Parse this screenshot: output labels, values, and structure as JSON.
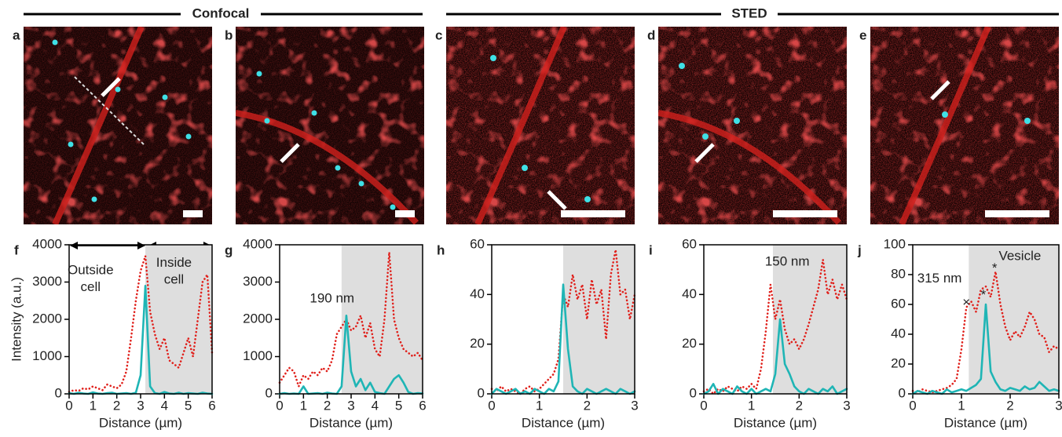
{
  "headers": [
    "Confocal",
    "STED"
  ],
  "panel_labels": [
    "a",
    "b",
    "c",
    "d",
    "e"
  ],
  "chart_data": [
    {
      "type": "line",
      "label": "f",
      "xlabel": "Distance (µm)",
      "ylabel": "Intensity (a.u.)",
      "x": [
        0,
        0.2,
        0.4,
        0.6,
        0.8,
        1,
        1.2,
        1.4,
        1.6,
        1.8,
        2,
        2.2,
        2.4,
        2.6,
        2.8,
        3,
        3.2,
        3.4,
        3.6,
        3.8,
        4,
        4.2,
        4.4,
        4.6,
        4.8,
        5,
        5.2,
        5.4,
        5.6,
        5.8,
        6
      ],
      "series": [
        {
          "color": "#e0201b",
          "dash": "dotted",
          "values": [
            50,
            100,
            80,
            150,
            120,
            200,
            150,
            100,
            250,
            200,
            150,
            250,
            600,
            1500,
            2500,
            3300,
            3700,
            2200,
            1600,
            1200,
            1500,
            900,
            800,
            700,
            1100,
            1500,
            1000,
            2000,
            3000,
            3200,
            1100
          ]
        },
        {
          "color": "#1fb5b5",
          "dash": "solid",
          "values": [
            20,
            0,
            30,
            10,
            0,
            40,
            10,
            0,
            20,
            30,
            0,
            10,
            20,
            0,
            30,
            500,
            2900,
            200,
            20,
            0,
            50,
            10,
            0,
            30,
            0,
            20,
            10,
            0,
            30,
            10,
            0
          ]
        }
      ],
      "xlim": [
        0,
        6
      ],
      "ylim": [
        0,
        4000
      ],
      "xticks": [
        0,
        1,
        2,
        3,
        4,
        5,
        6
      ],
      "yticks": [
        0,
        1000,
        2000,
        3000,
        4000
      ],
      "shade": [
        3.2,
        6
      ],
      "annotations": [
        {
          "text": "Outside",
          "x": 0.9,
          "y": 3300
        },
        {
          "text": "cell",
          "x": 0.9,
          "y": 2850
        },
        {
          "text": "Inside",
          "x": 4.4,
          "y": 3500
        },
        {
          "text": "cell",
          "x": 4.4,
          "y": 3050
        }
      ]
    },
    {
      "type": "line",
      "label": "g",
      "xlabel": "Distance (µm)",
      "x": [
        0,
        0.2,
        0.4,
        0.6,
        0.8,
        1,
        1.2,
        1.4,
        1.6,
        1.8,
        2,
        2.2,
        2.4,
        2.6,
        2.8,
        3,
        3.2,
        3.4,
        3.6,
        3.8,
        4,
        4.2,
        4.4,
        4.6,
        4.8,
        5,
        5.2,
        5.4,
        5.6,
        5.8,
        6
      ],
      "series": [
        {
          "color": "#e0201b",
          "dash": "dotted",
          "values": [
            300,
            500,
            700,
            600,
            200,
            500,
            400,
            600,
            500,
            700,
            600,
            900,
            1600,
            1800,
            2000,
            1700,
            1800,
            2100,
            1500,
            1900,
            1200,
            1000,
            2000,
            3800,
            2000,
            1500,
            1200,
            1100,
            1000,
            1100,
            900
          ]
        },
        {
          "color": "#1fb5b5",
          "dash": "solid",
          "values": [
            0,
            20,
            0,
            10,
            0,
            200,
            0,
            10,
            20,
            0,
            30,
            10,
            0,
            200,
            2100,
            600,
            200,
            400,
            100,
            300,
            50,
            20,
            0,
            200,
            400,
            500,
            300,
            50,
            0,
            20,
            10
          ]
        }
      ],
      "xlim": [
        0,
        6
      ],
      "ylim": [
        0,
        4000
      ],
      "xticks": [
        0,
        1,
        2,
        3,
        4,
        5,
        6
      ],
      "yticks": [
        0,
        1000,
        2000,
        3000,
        4000
      ],
      "shade": [
        2.6,
        6
      ],
      "annotations": [
        {
          "text": "190 nm",
          "x": 2.2,
          "y": 2550
        }
      ]
    },
    {
      "type": "line",
      "label": "h",
      "xlabel": "Distance (µm)",
      "x": [
        0,
        0.1,
        0.2,
        0.3,
        0.4,
        0.5,
        0.6,
        0.7,
        0.8,
        0.9,
        1,
        1.1,
        1.2,
        1.3,
        1.4,
        1.5,
        1.6,
        1.7,
        1.8,
        1.9,
        2,
        2.1,
        2.2,
        2.3,
        2.4,
        2.5,
        2.6,
        2.7,
        2.8,
        2.9,
        3
      ],
      "series": [
        {
          "color": "#e0201b",
          "dash": "dotted",
          "values": [
            2,
            1,
            3,
            1,
            2,
            1,
            0,
            2,
            3,
            1,
            2,
            4,
            6,
            8,
            14,
            40,
            35,
            48,
            38,
            44,
            30,
            46,
            36,
            42,
            22,
            48,
            58,
            40,
            42,
            30,
            40
          ]
        },
        {
          "color": "#1fb5b5",
          "dash": "solid",
          "values": [
            0,
            2,
            1,
            0,
            1,
            2,
            0,
            1,
            0,
            2,
            1,
            0,
            2,
            1,
            5,
            44,
            18,
            3,
            1,
            0,
            2,
            1,
            0,
            1,
            2,
            1,
            0,
            2,
            1,
            0,
            1
          ]
        }
      ],
      "xlim": [
        0,
        3
      ],
      "ylim": [
        0,
        60
      ],
      "xticks": [
        0,
        1,
        2,
        3
      ],
      "yticks": [
        0,
        20,
        40,
        60
      ],
      "shade": [
        1.5,
        3
      ],
      "annotations": []
    },
    {
      "type": "line",
      "label": "i",
      "xlabel": "Distance (µm)",
      "x": [
        0,
        0.1,
        0.2,
        0.3,
        0.4,
        0.5,
        0.6,
        0.7,
        0.8,
        0.9,
        1,
        1.1,
        1.2,
        1.3,
        1.4,
        1.5,
        1.6,
        1.7,
        1.8,
        1.9,
        2,
        2.1,
        2.2,
        2.3,
        2.4,
        2.5,
        2.6,
        2.7,
        2.8,
        2.9,
        3
      ],
      "series": [
        {
          "color": "#e0201b",
          "dash": "dotted",
          "values": [
            1,
            2,
            0,
            2,
            1,
            3,
            2,
            1,
            3,
            2,
            4,
            2,
            10,
            25,
            44,
            30,
            38,
            26,
            20,
            22,
            18,
            22,
            28,
            35,
            42,
            54,
            40,
            46,
            38,
            44,
            38
          ]
        },
        {
          "color": "#1fb5b5",
          "dash": "solid",
          "values": [
            0,
            1,
            4,
            0,
            2,
            1,
            0,
            3,
            1,
            0,
            2,
            0,
            1,
            2,
            1,
            8,
            30,
            12,
            8,
            3,
            1,
            0,
            2,
            1,
            0,
            2,
            1,
            3,
            0,
            1,
            2
          ]
        }
      ],
      "xlim": [
        0,
        3
      ],
      "ylim": [
        0,
        60
      ],
      "xticks": [
        0,
        1,
        2,
        3
      ],
      "yticks": [
        0,
        20,
        40,
        60
      ],
      "shade": [
        1.45,
        3
      ],
      "annotations": [
        {
          "text": "150 nm",
          "x": 1.75,
          "y": 53
        }
      ]
    },
    {
      "type": "line",
      "label": "j",
      "xlabel": "Distance (µm)",
      "x": [
        0,
        0.1,
        0.2,
        0.3,
        0.4,
        0.5,
        0.6,
        0.7,
        0.8,
        0.9,
        1,
        1.1,
        1.2,
        1.3,
        1.4,
        1.5,
        1.6,
        1.7,
        1.8,
        1.9,
        2,
        2.1,
        2.2,
        2.3,
        2.4,
        2.5,
        2.6,
        2.7,
        2.8,
        2.9,
        3
      ],
      "series": [
        {
          "color": "#e0201b",
          "dash": "dotted",
          "values": [
            2,
            1,
            3,
            2,
            1,
            2,
            3,
            4,
            6,
            10,
            30,
            58,
            62,
            55,
            70,
            72,
            65,
            82,
            60,
            45,
            36,
            42,
            38,
            45,
            55,
            50,
            40,
            38,
            28,
            32,
            30
          ]
        },
        {
          "color": "#1fb5b5",
          "dash": "solid",
          "values": [
            0,
            2,
            1,
            0,
            2,
            1,
            0,
            3,
            1,
            2,
            3,
            2,
            4,
            6,
            10,
            60,
            15,
            8,
            3,
            2,
            4,
            3,
            2,
            5,
            3,
            4,
            8,
            5,
            2,
            3,
            2
          ]
        }
      ],
      "xlim": [
        0,
        3
      ],
      "ylim": [
        0,
        100
      ],
      "xticks": [
        0,
        1,
        2,
        3
      ],
      "yticks": [
        0,
        20,
        40,
        60,
        80,
        100
      ],
      "shade": [
        1.15,
        3
      ],
      "annotations": [
        {
          "text": "315 nm",
          "x": 0.55,
          "y": 77
        },
        {
          "text": "Vesicle",
          "x": 2.2,
          "y": 92
        },
        {
          "text": "*",
          "x": 1.45,
          "y": 66
        },
        {
          "text": "*",
          "x": 1.68,
          "y": 84
        },
        {
          "text": "×",
          "x": 1.1,
          "y": 61
        }
      ]
    }
  ]
}
